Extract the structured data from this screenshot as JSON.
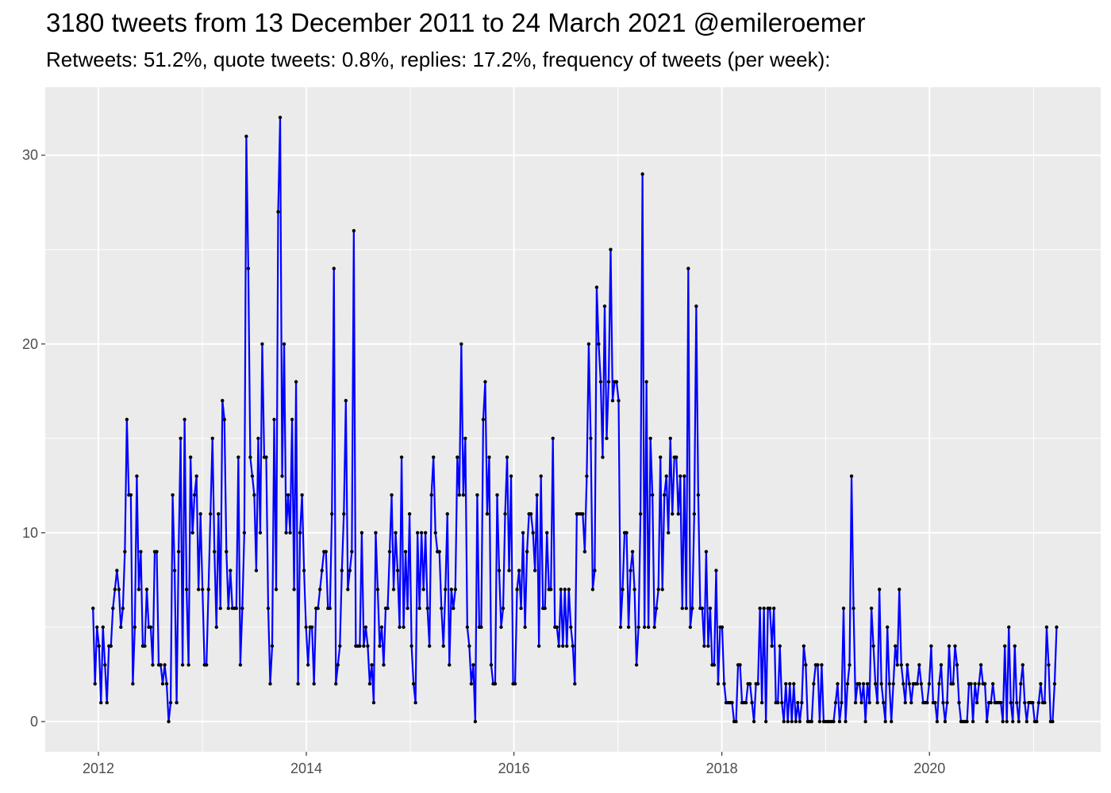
{
  "chart_data": {
    "type": "line",
    "title": "3180 tweets from 13 December 2011 to 24 March 2021 @emileroemer",
    "subtitle": "Retweets: 51.2%, quote tweets: 0.8%, replies: 17.2%, frequency of tweets (per week):",
    "xlabel": "",
    "ylabel": "",
    "x_ticks": [
      "2012",
      "2014",
      "2016",
      "2018",
      "2020"
    ],
    "y_ticks": [
      0,
      10,
      20,
      30
    ],
    "xlim": [
      "2011-06-28",
      "2021-08-25"
    ],
    "ylim": [
      -1.6,
      33.6
    ],
    "grid": true,
    "legend": "none",
    "background_color": "#ebebeb",
    "grid_color": "#ffffff",
    "line_color": "#0000ff",
    "point_color": "#000000",
    "start_date": "2011-12-13",
    "interval_days": 7,
    "series": [
      {
        "values": [
          6,
          2,
          5,
          4,
          1,
          5,
          3,
          1,
          4,
          4,
          6,
          7,
          8,
          7,
          5,
          6,
          9,
          16,
          12,
          12,
          2,
          5,
          13,
          7,
          9,
          4,
          4,
          7,
          5,
          5,
          3,
          9,
          9,
          3,
          3,
          2,
          3,
          2,
          0,
          1,
          12,
          8,
          1,
          9,
          15,
          3,
          16,
          7,
          3,
          14,
          10,
          12,
          13,
          7,
          11,
          7,
          3,
          3,
          7,
          11,
          15,
          9,
          5,
          11,
          6,
          17,
          16,
          9,
          6,
          8,
          6,
          6,
          6,
          14,
          3,
          6,
          10,
          31,
          24,
          14,
          13,
          12,
          8,
          15,
          10,
          20,
          14,
          14,
          6,
          2,
          4,
          16,
          7,
          27,
          32,
          13,
          20,
          10,
          12,
          10,
          16,
          7,
          18,
          2,
          10,
          12,
          8,
          5,
          3,
          5,
          5,
          2,
          6,
          6,
          7,
          8,
          9,
          9,
          6,
          6,
          11,
          24,
          2,
          3,
          4,
          8,
          11,
          17,
          7,
          8,
          9,
          26,
          4,
          4,
          4,
          10,
          4,
          5,
          4,
          2,
          3,
          1,
          10,
          7,
          4,
          5,
          3,
          6,
          6,
          9,
          12,
          7,
          10,
          8,
          5,
          14,
          5,
          9,
          6,
          11,
          4,
          2,
          1,
          10,
          6,
          10,
          7,
          10,
          6,
          4,
          12,
          14,
          10,
          9,
          9,
          6,
          4,
          7,
          11,
          3,
          7,
          6,
          7,
          14,
          12,
          20,
          12,
          15,
          5,
          4,
          2,
          3,
          0,
          12,
          5,
          5,
          16,
          18,
          11,
          14,
          3,
          2,
          2,
          12,
          8,
          5,
          6,
          11,
          14,
          8,
          13,
          2,
          2,
          7,
          8,
          6,
          10,
          5,
          9,
          11,
          11,
          10,
          8,
          12,
          4,
          13,
          6,
          6,
          10,
          7,
          7,
          15,
          5,
          5,
          4,
          7,
          4,
          7,
          4,
          7,
          5,
          4,
          2,
          11,
          11,
          11,
          11,
          9,
          13,
          20,
          15,
          7,
          8,
          23,
          20,
          18,
          14,
          22,
          15,
          18,
          25,
          17,
          18,
          18,
          17,
          5,
          7,
          10,
          10,
          5,
          8,
          9,
          7,
          3,
          5,
          11,
          29,
          5,
          18,
          5,
          15,
          12,
          5,
          6,
          7,
          14,
          7,
          12,
          13,
          10,
          15,
          11,
          14,
          14,
          11,
          13,
          6,
          13,
          6,
          24,
          5,
          6,
          11,
          22,
          12,
          6,
          6,
          4,
          9,
          4,
          6,
          3,
          3,
          8,
          2,
          5,
          5,
          2,
          1,
          1,
          1,
          1,
          0,
          0,
          3,
          3,
          1,
          1,
          1,
          2,
          2,
          1,
          0,
          2,
          2,
          6,
          1,
          6,
          0,
          6,
          6,
          4,
          6,
          1,
          1,
          4,
          1,
          0,
          2,
          0,
          2,
          0,
          2,
          0,
          1,
          0,
          1,
          4,
          3,
          0,
          0,
          0,
          2,
          3,
          3,
          0,
          3,
          0,
          0,
          0,
          0,
          0,
          0,
          1,
          2,
          0,
          1,
          6,
          0,
          2,
          3,
          13,
          6,
          1,
          2,
          2,
          1,
          2,
          0,
          2,
          1,
          6,
          4,
          2,
          1,
          7,
          2,
          1,
          0,
          5,
          2,
          0,
          2,
          4,
          3,
          7,
          3,
          2,
          1,
          3,
          2,
          1,
          2,
          2,
          2,
          3,
          2,
          1,
          1,
          1,
          2,
          4,
          1,
          1,
          0,
          2,
          3,
          1,
          0,
          1,
          4,
          2,
          2,
          4,
          3,
          1,
          0,
          0,
          0,
          0,
          2,
          2,
          0,
          2,
          1,
          2,
          3,
          2,
          2,
          0,
          1,
          1,
          2,
          1,
          1,
          1,
          1,
          0,
          4,
          0,
          5,
          1,
          0,
          4,
          1,
          0,
          2,
          3,
          1,
          0,
          1,
          1,
          1,
          0,
          0,
          1,
          2,
          1,
          1,
          5,
          3,
          0,
          0,
          2,
          5
        ]
      }
    ]
  }
}
